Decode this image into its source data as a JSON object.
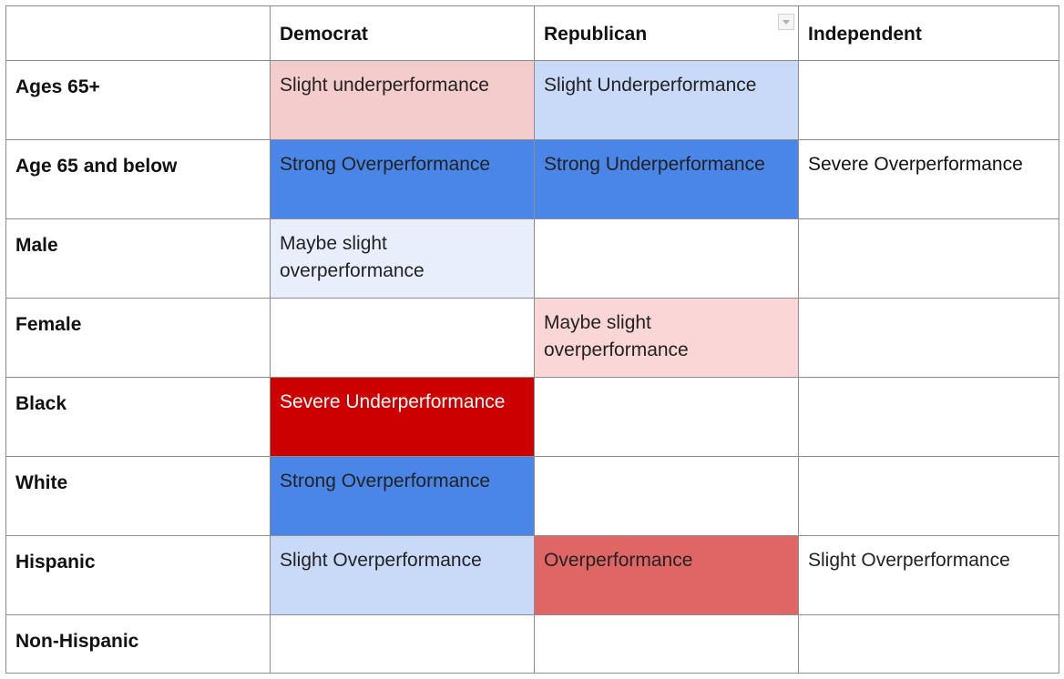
{
  "columns": [
    "",
    "Democrat",
    "Republican",
    "Independent"
  ],
  "rows": [
    {
      "label": "Ages 65+",
      "cells": [
        {
          "text": "Slight underperformance",
          "bg": "#f4cccc",
          "color": "#222222",
          "bold": false
        },
        {
          "text": "Slight Underperformance",
          "bg": "#c9daf8",
          "color": "#222222",
          "bold": false
        },
        {
          "text": "",
          "bg": "#ffffff",
          "color": "#222222",
          "bold": false
        }
      ]
    },
    {
      "label": "Age 65 and below",
      "cells": [
        {
          "text": "Strong Overperformance",
          "bg": "#4a86e8",
          "color": "#222222",
          "bold": false
        },
        {
          "text": "Strong Underperformance",
          "bg": "#4a86e8",
          "color": "#222222",
          "bold": false
        },
        {
          "text": "Severe Overperformance",
          "bg": "#ffffff",
          "color": "#111111",
          "bold": true
        }
      ]
    },
    {
      "label": "Male",
      "cells": [
        {
          "text": "Maybe slight overperformance",
          "bg": "#e8eefc",
          "color": "#222222",
          "bold": false
        },
        {
          "text": "",
          "bg": "#ffffff",
          "color": "#222222",
          "bold": false
        },
        {
          "text": "",
          "bg": "#ffffff",
          "color": "#222222",
          "bold": false
        }
      ]
    },
    {
      "label": "Female",
      "cells": [
        {
          "text": "",
          "bg": "#ffffff",
          "color": "#222222",
          "bold": false
        },
        {
          "text": "Maybe slight overperformance",
          "bg": "#fbd6d6",
          "color": "#222222",
          "bold": false
        },
        {
          "text": "",
          "bg": "#ffffff",
          "color": "#222222",
          "bold": false
        }
      ]
    },
    {
      "label": "Black",
      "cells": [
        {
          "text": "Severe Underperformance",
          "bg": "#cc0000",
          "color": "#ffffff",
          "bold": false
        },
        {
          "text": "",
          "bg": "#ffffff",
          "color": "#222222",
          "bold": false
        },
        {
          "text": "",
          "bg": "#ffffff",
          "color": "#222222",
          "bold": false
        }
      ]
    },
    {
      "label": "White",
      "cells": [
        {
          "text": "Strong Overperformance",
          "bg": "#4a86e8",
          "color": "#222222",
          "bold": false
        },
        {
          "text": "",
          "bg": "#ffffff",
          "color": "#222222",
          "bold": false
        },
        {
          "text": "",
          "bg": "#ffffff",
          "color": "#222222",
          "bold": false
        }
      ]
    },
    {
      "label": "Hispanic",
      "cells": [
        {
          "text": "Slight Overperformance",
          "bg": "#c9daf8",
          "color": "#222222",
          "bold": false
        },
        {
          "text": "Overperformance",
          "bg": "#e06666",
          "color": "#222222",
          "bold": false
        },
        {
          "text": "Slight Overperformance",
          "bg": "#ffffff",
          "color": "#222222",
          "bold": false
        }
      ]
    },
    {
      "label": "Non-Hispanic",
      "cells": [
        {
          "text": "",
          "bg": "#ffffff",
          "color": "#222222",
          "bold": false
        },
        {
          "text": "",
          "bg": "#ffffff",
          "color": "#222222",
          "bold": false
        },
        {
          "text": "",
          "bg": "#ffffff",
          "color": "#222222",
          "bold": false
        }
      ]
    }
  ]
}
